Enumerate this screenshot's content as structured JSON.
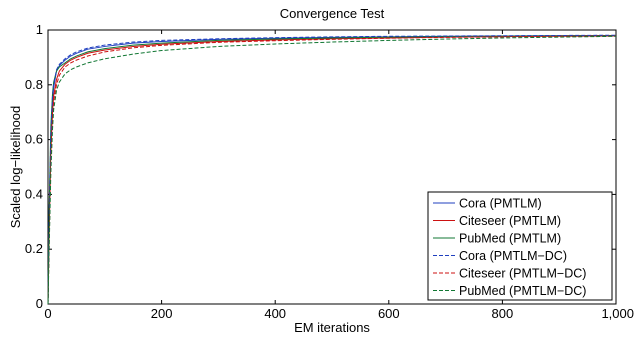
{
  "chart_data": {
    "type": "line",
    "title": "Convergence Test",
    "xlabel": "EM iterations",
    "ylabel": "Scaled log−likelihood",
    "xlim": [
      0,
      1000
    ],
    "ylim": [
      0,
      1
    ],
    "x_ticks": [
      0,
      200,
      400,
      600,
      800,
      1000
    ],
    "x_tick_labels": [
      "0",
      "200",
      "400",
      "600",
      "800",
      "1,000"
    ],
    "y_ticks": [
      0,
      0.2,
      0.4,
      0.6,
      0.8,
      1
    ],
    "y_tick_labels": [
      "0",
      "0.2",
      "0.4",
      "0.6",
      "0.8",
      "1"
    ],
    "grid": false,
    "legend_position": "bottom-right",
    "x": [
      0,
      2,
      5,
      8,
      10,
      15,
      20,
      30,
      40,
      50,
      70,
      100,
      150,
      200,
      300,
      400,
      500,
      600,
      700,
      800,
      900,
      1000
    ],
    "series": [
      {
        "name": "Cora (PMTLM)",
        "color": "#1f3fbf",
        "dash": "solid",
        "values": [
          0.0,
          0.3,
          0.6,
          0.74,
          0.79,
          0.85,
          0.87,
          0.89,
          0.905,
          0.915,
          0.93,
          0.94,
          0.952,
          0.958,
          0.966,
          0.97,
          0.973,
          0.975,
          0.977,
          0.978,
          0.979,
          0.98
        ]
      },
      {
        "name": "Citeseer (PMTLM)",
        "color": "#cc1111",
        "dash": "solid",
        "values": [
          0.0,
          0.25,
          0.55,
          0.7,
          0.76,
          0.82,
          0.85,
          0.875,
          0.89,
          0.9,
          0.915,
          0.927,
          0.94,
          0.948,
          0.958,
          0.964,
          0.968,
          0.971,
          0.974,
          0.976,
          0.977,
          0.978
        ]
      },
      {
        "name": "PubMed (PMTLM)",
        "color": "#117733",
        "dash": "solid",
        "values": [
          0.0,
          0.35,
          0.65,
          0.77,
          0.81,
          0.85,
          0.865,
          0.88,
          0.895,
          0.905,
          0.92,
          0.932,
          0.945,
          0.952,
          0.962,
          0.967,
          0.971,
          0.974,
          0.976,
          0.978,
          0.979,
          0.98
        ]
      },
      {
        "name": "Cora (PMTLM−DC)",
        "color": "#1f3fbf",
        "dash": "dashed",
        "values": [
          0.0,
          0.32,
          0.62,
          0.76,
          0.8,
          0.855,
          0.875,
          0.895,
          0.91,
          0.92,
          0.934,
          0.945,
          0.956,
          0.962,
          0.968,
          0.972,
          0.975,
          0.977,
          0.978,
          0.979,
          0.98,
          0.981
        ]
      },
      {
        "name": "Citeseer (PMTLM−DC)",
        "color": "#cc1111",
        "dash": "dashed",
        "values": [
          0.0,
          0.22,
          0.52,
          0.68,
          0.74,
          0.8,
          0.835,
          0.865,
          0.88,
          0.89,
          0.905,
          0.92,
          0.935,
          0.944,
          0.955,
          0.961,
          0.966,
          0.97,
          0.973,
          0.975,
          0.977,
          0.978
        ]
      },
      {
        "name": "PubMed (PMTLM−DC)",
        "color": "#117733",
        "dash": "dashed",
        "values": [
          0.0,
          0.2,
          0.48,
          0.64,
          0.71,
          0.78,
          0.81,
          0.84,
          0.855,
          0.865,
          0.88,
          0.895,
          0.912,
          0.925,
          0.94,
          0.949,
          0.956,
          0.962,
          0.967,
          0.971,
          0.974,
          0.977
        ]
      }
    ]
  }
}
